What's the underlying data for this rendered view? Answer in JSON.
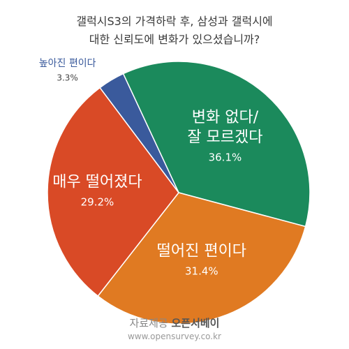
{
  "chart_data": {
    "type": "pie",
    "title_lines": [
      "갤럭시S3의 가격하락 후, 삼성과 갤럭시에",
      "대한 신뢰도에 변화가 있으셨습니까?"
    ],
    "slices": [
      {
        "label_lines": [
          "변화 없다/",
          "잘 모르겠다"
        ],
        "value": 36.1,
        "value_label": "36.1%",
        "color": "#1b8a5c",
        "text_color": "#ffffff"
      },
      {
        "label_lines": [
          "떨어진 편이다"
        ],
        "value": 31.4,
        "value_label": "31.4%",
        "color": "#e07a22",
        "text_color": "#ffffff"
      },
      {
        "label_lines": [
          "매우 떨어졌다"
        ],
        "value": 29.2,
        "value_label": "29.2%",
        "color": "#d94a26",
        "text_color": "#ffffff"
      },
      {
        "label_lines": [
          "높아진 편이다"
        ],
        "value": 3.3,
        "value_label": "3.3%",
        "color": "#3a5a9c",
        "text_color": "#3a5a9c"
      }
    ]
  },
  "footer": {
    "credit_prefix": "자료제공",
    "credit_brand": "오픈서베이",
    "url": "www.opensurvey.co.kr"
  }
}
